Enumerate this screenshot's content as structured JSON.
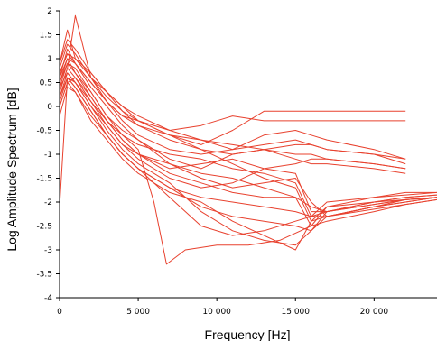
{
  "chart_data": {
    "type": "line",
    "title": "",
    "xlabel": "Frequency [Hz]",
    "ylabel": "Log Amplitude Spectrum [dB]",
    "xlim": [
      0,
      24000
    ],
    "ylim": [
      -4,
      2
    ],
    "x_ticks": [
      0,
      5000,
      10000,
      15000,
      20000
    ],
    "x_tick_labels": [
      "0",
      "5 000",
      "10 000",
      "15 000",
      "20 000"
    ],
    "y_ticks": [
      -4,
      -3.5,
      -3,
      -2.5,
      -2,
      -1.5,
      -1,
      -0.5,
      0,
      0.5,
      1,
      1.5,
      2
    ],
    "y_tick_labels": [
      "-4",
      "-3.5",
      "-3",
      "-2.5",
      "-2",
      "-1.5",
      "-1",
      "-0.5",
      "0",
      "0.5",
      "1",
      "1.5",
      "2"
    ],
    "grid": false,
    "legend": "none",
    "series_color": "#e8412e",
    "series": [
      {
        "x": [
          0,
          500,
          1000,
          2000,
          3000,
          4000,
          5000,
          7000,
          9000,
          11000,
          13000,
          15000,
          16000,
          17000,
          20000,
          22000
        ],
        "values": [
          0.9,
          1.6,
          1.0,
          0.7,
          0.3,
          -0.1,
          -0.4,
          -0.6,
          -0.8,
          -0.5,
          -0.1,
          -0.1,
          -0.1,
          -0.1,
          -0.1,
          -0.1
        ]
      },
      {
        "x": [
          0,
          500,
          1000,
          2000,
          3000,
          4000,
          5000,
          7000,
          9000,
          11000,
          13000,
          15000,
          16000,
          17000,
          20000,
          22000
        ],
        "values": [
          0.6,
          1.2,
          0.9,
          0.5,
          0.1,
          -0.2,
          -0.3,
          -0.5,
          -0.4,
          -0.2,
          -0.3,
          -0.3,
          -0.3,
          -0.3,
          -0.3,
          -0.3
        ]
      },
      {
        "x": [
          0,
          500,
          1000,
          2000,
          3000,
          4000,
          5000,
          7000,
          9000,
          11000,
          13000,
          15000,
          16000,
          17000,
          20000,
          22000
        ],
        "values": [
          0.3,
          0.8,
          1.9,
          0.6,
          0.1,
          -0.3,
          -0.6,
          -0.9,
          -1.0,
          -0.9,
          -0.6,
          -0.5,
          -0.6,
          -0.7,
          -0.9,
          -1.1
        ]
      },
      {
        "x": [
          0,
          500,
          1000,
          2000,
          3000,
          4000,
          5000,
          7000,
          9000,
          11000,
          13000,
          15000,
          16000,
          17000,
          20000,
          22000
        ],
        "values": [
          0.5,
          1.0,
          0.7,
          0.3,
          -0.2,
          -0.5,
          -0.7,
          -1.1,
          -1.3,
          -1.0,
          -0.9,
          -0.8,
          -0.8,
          -0.9,
          -1.0,
          -1.2
        ]
      },
      {
        "x": [
          0,
          500,
          1000,
          2000,
          3000,
          4000,
          5000,
          7000,
          9000,
          11000,
          13000,
          15000,
          16000,
          17000,
          20000,
          22000
        ],
        "values": [
          0.2,
          0.7,
          0.5,
          0.0,
          -0.4,
          -0.8,
          -1.1,
          -1.5,
          -1.7,
          -1.6,
          -1.3,
          -1.2,
          -1.1,
          -1.1,
          -1.2,
          -1.3
        ]
      },
      {
        "x": [
          0,
          500,
          1000,
          2000,
          3000,
          4000,
          5000,
          7000,
          9000,
          11000,
          13000,
          15000,
          16000,
          17000,
          20000,
          22000,
          24000
        ],
        "values": [
          -2.1,
          0.6,
          0.4,
          -0.1,
          -0.6,
          -1.0,
          -1.3,
          -1.7,
          -1.9,
          -2.0,
          -2.1,
          -2.2,
          -2.3,
          -2.0,
          -1.9,
          -1.85,
          -1.8
        ]
      },
      {
        "x": [
          0,
          500,
          1000,
          2000,
          3000,
          4000,
          5000,
          7000,
          9000,
          11000,
          13000,
          15000,
          16000,
          17000,
          20000,
          22000,
          24000
        ],
        "values": [
          0.0,
          0.5,
          0.6,
          0.2,
          -0.3,
          -0.7,
          -1.0,
          -1.4,
          -1.6,
          -1.8,
          -1.9,
          -1.9,
          -2.1,
          -2.2,
          -2.0,
          -1.9,
          -1.85
        ]
      },
      {
        "x": [
          0,
          500,
          1000,
          2000,
          3000,
          4000,
          5000,
          6000,
          6800,
          8000,
          10000,
          12000,
          14000,
          16000,
          17000,
          20000,
          22000,
          24000
        ],
        "values": [
          0.4,
          0.9,
          0.8,
          0.3,
          -0.2,
          -0.6,
          -0.9,
          -2.0,
          -3.3,
          -3.0,
          -2.9,
          -2.9,
          -2.8,
          -2.5,
          -2.1,
          -2.0,
          -1.95,
          -1.9
        ]
      },
      {
        "x": [
          0,
          500,
          1000,
          2000,
          3000,
          4000,
          5000,
          7000,
          9000,
          11000,
          13000,
          15000,
          16000,
          17000,
          20000,
          22000,
          24000
        ],
        "values": [
          0.1,
          0.6,
          0.5,
          0.0,
          -0.5,
          -0.9,
          -1.2,
          -1.6,
          -2.2,
          -2.6,
          -2.8,
          -2.9,
          -2.6,
          -2.2,
          -2.0,
          -1.9,
          -1.85
        ]
      },
      {
        "x": [
          0,
          500,
          1000,
          2000,
          3000,
          4000,
          5000,
          7000,
          9000,
          11000,
          13000,
          15000,
          16000,
          17000,
          20000,
          22000,
          24000
        ],
        "values": [
          0.7,
          1.1,
          0.9,
          0.4,
          0.0,
          -0.4,
          -0.7,
          -1.2,
          -1.5,
          -1.7,
          -1.6,
          -1.5,
          -2.0,
          -2.3,
          -2.1,
          -1.95,
          -1.9
        ]
      },
      {
        "x": [
          0,
          500,
          1000,
          2000,
          3000,
          4000,
          5000,
          7000,
          9000,
          11000,
          13000,
          15000,
          16000,
          17000,
          20000,
          22000
        ],
        "values": [
          0.8,
          1.3,
          1.1,
          0.6,
          0.2,
          -0.1,
          -0.3,
          -0.6,
          -0.7,
          -0.9,
          -0.8,
          -0.7,
          -0.8,
          -0.9,
          -1.0,
          -1.1
        ]
      },
      {
        "x": [
          0,
          500,
          1000,
          2000,
          3000,
          4000,
          5000,
          7000,
          9000,
          11000,
          13000,
          15000,
          16000,
          17000,
          20000,
          22000,
          24000
        ],
        "values": [
          -0.2,
          0.4,
          0.3,
          -0.3,
          -0.7,
          -1.1,
          -1.4,
          -1.8,
          -2.0,
          -2.4,
          -2.7,
          -3.0,
          -2.4,
          -2.1,
          -1.9,
          -1.8,
          -1.8
        ]
      },
      {
        "x": [
          0,
          500,
          1000,
          2000,
          3000,
          4000,
          5000,
          7000,
          9000,
          11000,
          13000,
          15000,
          16000,
          17000,
          20000,
          22000,
          24000
        ],
        "values": [
          0.3,
          0.8,
          0.6,
          0.1,
          -0.4,
          -0.8,
          -1.0,
          -1.3,
          -1.2,
          -1.1,
          -1.3,
          -1.4,
          -2.2,
          -2.2,
          -2.05,
          -1.95,
          -1.9
        ]
      },
      {
        "x": [
          0,
          500,
          1000,
          2000,
          3000,
          4000,
          5000,
          7000,
          9000,
          11000,
          13000,
          15000,
          16000,
          17000,
          20000,
          22000,
          24000
        ],
        "values": [
          0.5,
          0.9,
          0.7,
          0.2,
          -0.3,
          -0.6,
          -0.8,
          -1.0,
          -1.1,
          -1.3,
          -1.4,
          -1.6,
          -2.3,
          -2.3,
          -2.1,
          -2.0,
          -1.9
        ]
      },
      {
        "x": [
          0,
          500,
          1000,
          2000,
          3000,
          4000,
          5000,
          7000,
          9000,
          11000,
          13000,
          15000,
          16000,
          17000,
          20000,
          22000
        ],
        "values": [
          0.6,
          1.0,
          0.9,
          0.5,
          0.1,
          -0.2,
          -0.4,
          -0.7,
          -0.9,
          -1.0,
          -0.9,
          -1.0,
          -1.0,
          -1.1,
          -1.2,
          -1.3
        ]
      },
      {
        "x": [
          0,
          500,
          1000,
          2000,
          3000,
          4000,
          5000,
          7000,
          9000,
          11000,
          13000,
          15000,
          16000,
          17000,
          20000,
          22000,
          24000
        ],
        "values": [
          0.2,
          0.6,
          0.4,
          -0.1,
          -0.6,
          -1.0,
          -1.3,
          -1.9,
          -2.5,
          -2.7,
          -2.6,
          -2.4,
          -2.3,
          -2.2,
          -2.05,
          -1.95,
          -1.9
        ]
      },
      {
        "x": [
          0,
          500,
          1000,
          2000,
          3000,
          4000,
          5000,
          7000,
          9000,
          11000,
          13000,
          15000,
          16000,
          17000,
          20000,
          22000,
          24000
        ],
        "values": [
          0.9,
          1.4,
          1.2,
          0.7,
          0.3,
          0.0,
          -0.3,
          -0.6,
          -0.9,
          -1.2,
          -1.5,
          -1.7,
          -2.4,
          -2.3,
          -2.15,
          -2.05,
          -1.95
        ]
      },
      {
        "x": [
          0,
          500,
          1000,
          2000,
          3000,
          4000,
          5000,
          7000,
          9000,
          11000,
          13000,
          15000,
          16000,
          17000,
          20000,
          22000,
          24000
        ],
        "values": [
          0.4,
          0.7,
          0.5,
          0.1,
          -0.3,
          -0.7,
          -1.0,
          -1.2,
          -1.4,
          -1.5,
          -1.7,
          -1.9,
          -2.5,
          -2.4,
          -2.2,
          -2.05,
          -1.95
        ]
      },
      {
        "x": [
          0,
          500,
          1000,
          2000,
          3000,
          4000,
          5000,
          7000,
          9000,
          11000,
          13000,
          15000,
          16000,
          17000,
          20000,
          22000
        ],
        "values": [
          0.7,
          1.1,
          1.0,
          0.6,
          0.3,
          0.0,
          -0.2,
          -0.5,
          -0.7,
          -0.8,
          -0.9,
          -1.1,
          -1.2,
          -1.2,
          -1.3,
          -1.4
        ]
      },
      {
        "x": [
          0,
          500,
          1000,
          2000,
          3000,
          4000,
          5000,
          7000,
          9000,
          11000,
          13000,
          15000,
          16000,
          17000,
          20000,
          22000,
          24000
        ],
        "values": [
          0.0,
          0.5,
          0.3,
          -0.2,
          -0.6,
          -1.0,
          -1.3,
          -1.7,
          -2.1,
          -2.3,
          -2.4,
          -2.5,
          -2.6,
          -2.3,
          -2.1,
          -2.0,
          -1.9
        ]
      }
    ]
  }
}
